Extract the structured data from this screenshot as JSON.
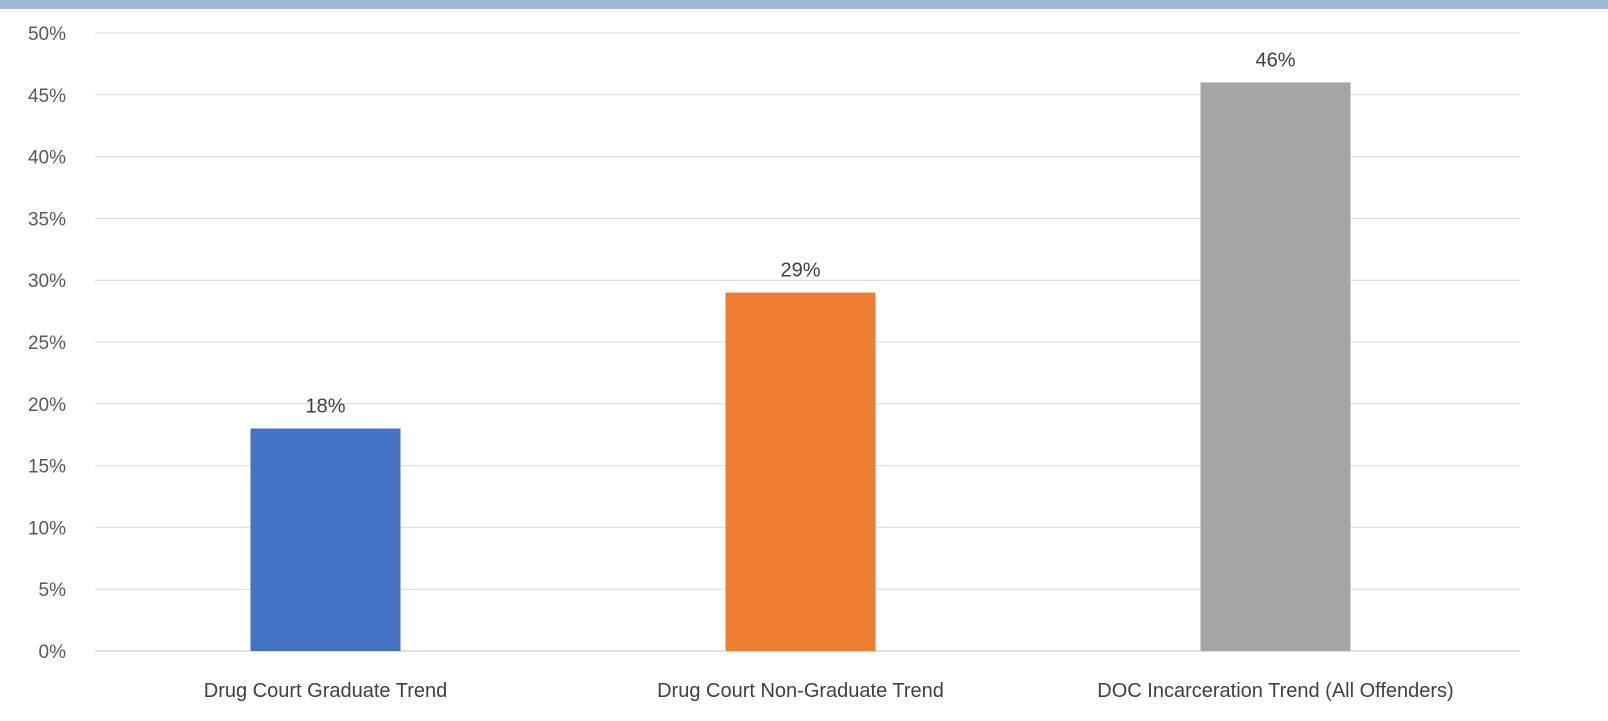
{
  "chart_data": {
    "type": "bar",
    "title": "",
    "xlabel": "",
    "ylabel": "",
    "categories": [
      "Drug Court Graduate Trend",
      "Drug Court Non-Graduate Trend",
      "DOC Incarceration Trend (All Offenders)"
    ],
    "values": [
      18,
      29,
      46
    ],
    "data_labels": [
      "18%",
      "29%",
      "46%"
    ],
    "bar_colors": [
      "#4472c4",
      "#ed7d31",
      "#a5a5a5"
    ],
    "ylim": [
      0,
      50
    ],
    "y_ticks": [
      0,
      5,
      10,
      15,
      20,
      25,
      30,
      35,
      40,
      45,
      50
    ],
    "y_tick_labels": [
      "0%",
      "5%",
      "10%",
      "15%",
      "20%",
      "25%",
      "30%",
      "35%",
      "40%",
      "45%",
      "50%"
    ],
    "grid": true,
    "legend": "none"
  },
  "colors": {
    "gridline": "#d9d9d9",
    "axis_line": "#d9d9d9",
    "top_band": "#9db7d6"
  }
}
